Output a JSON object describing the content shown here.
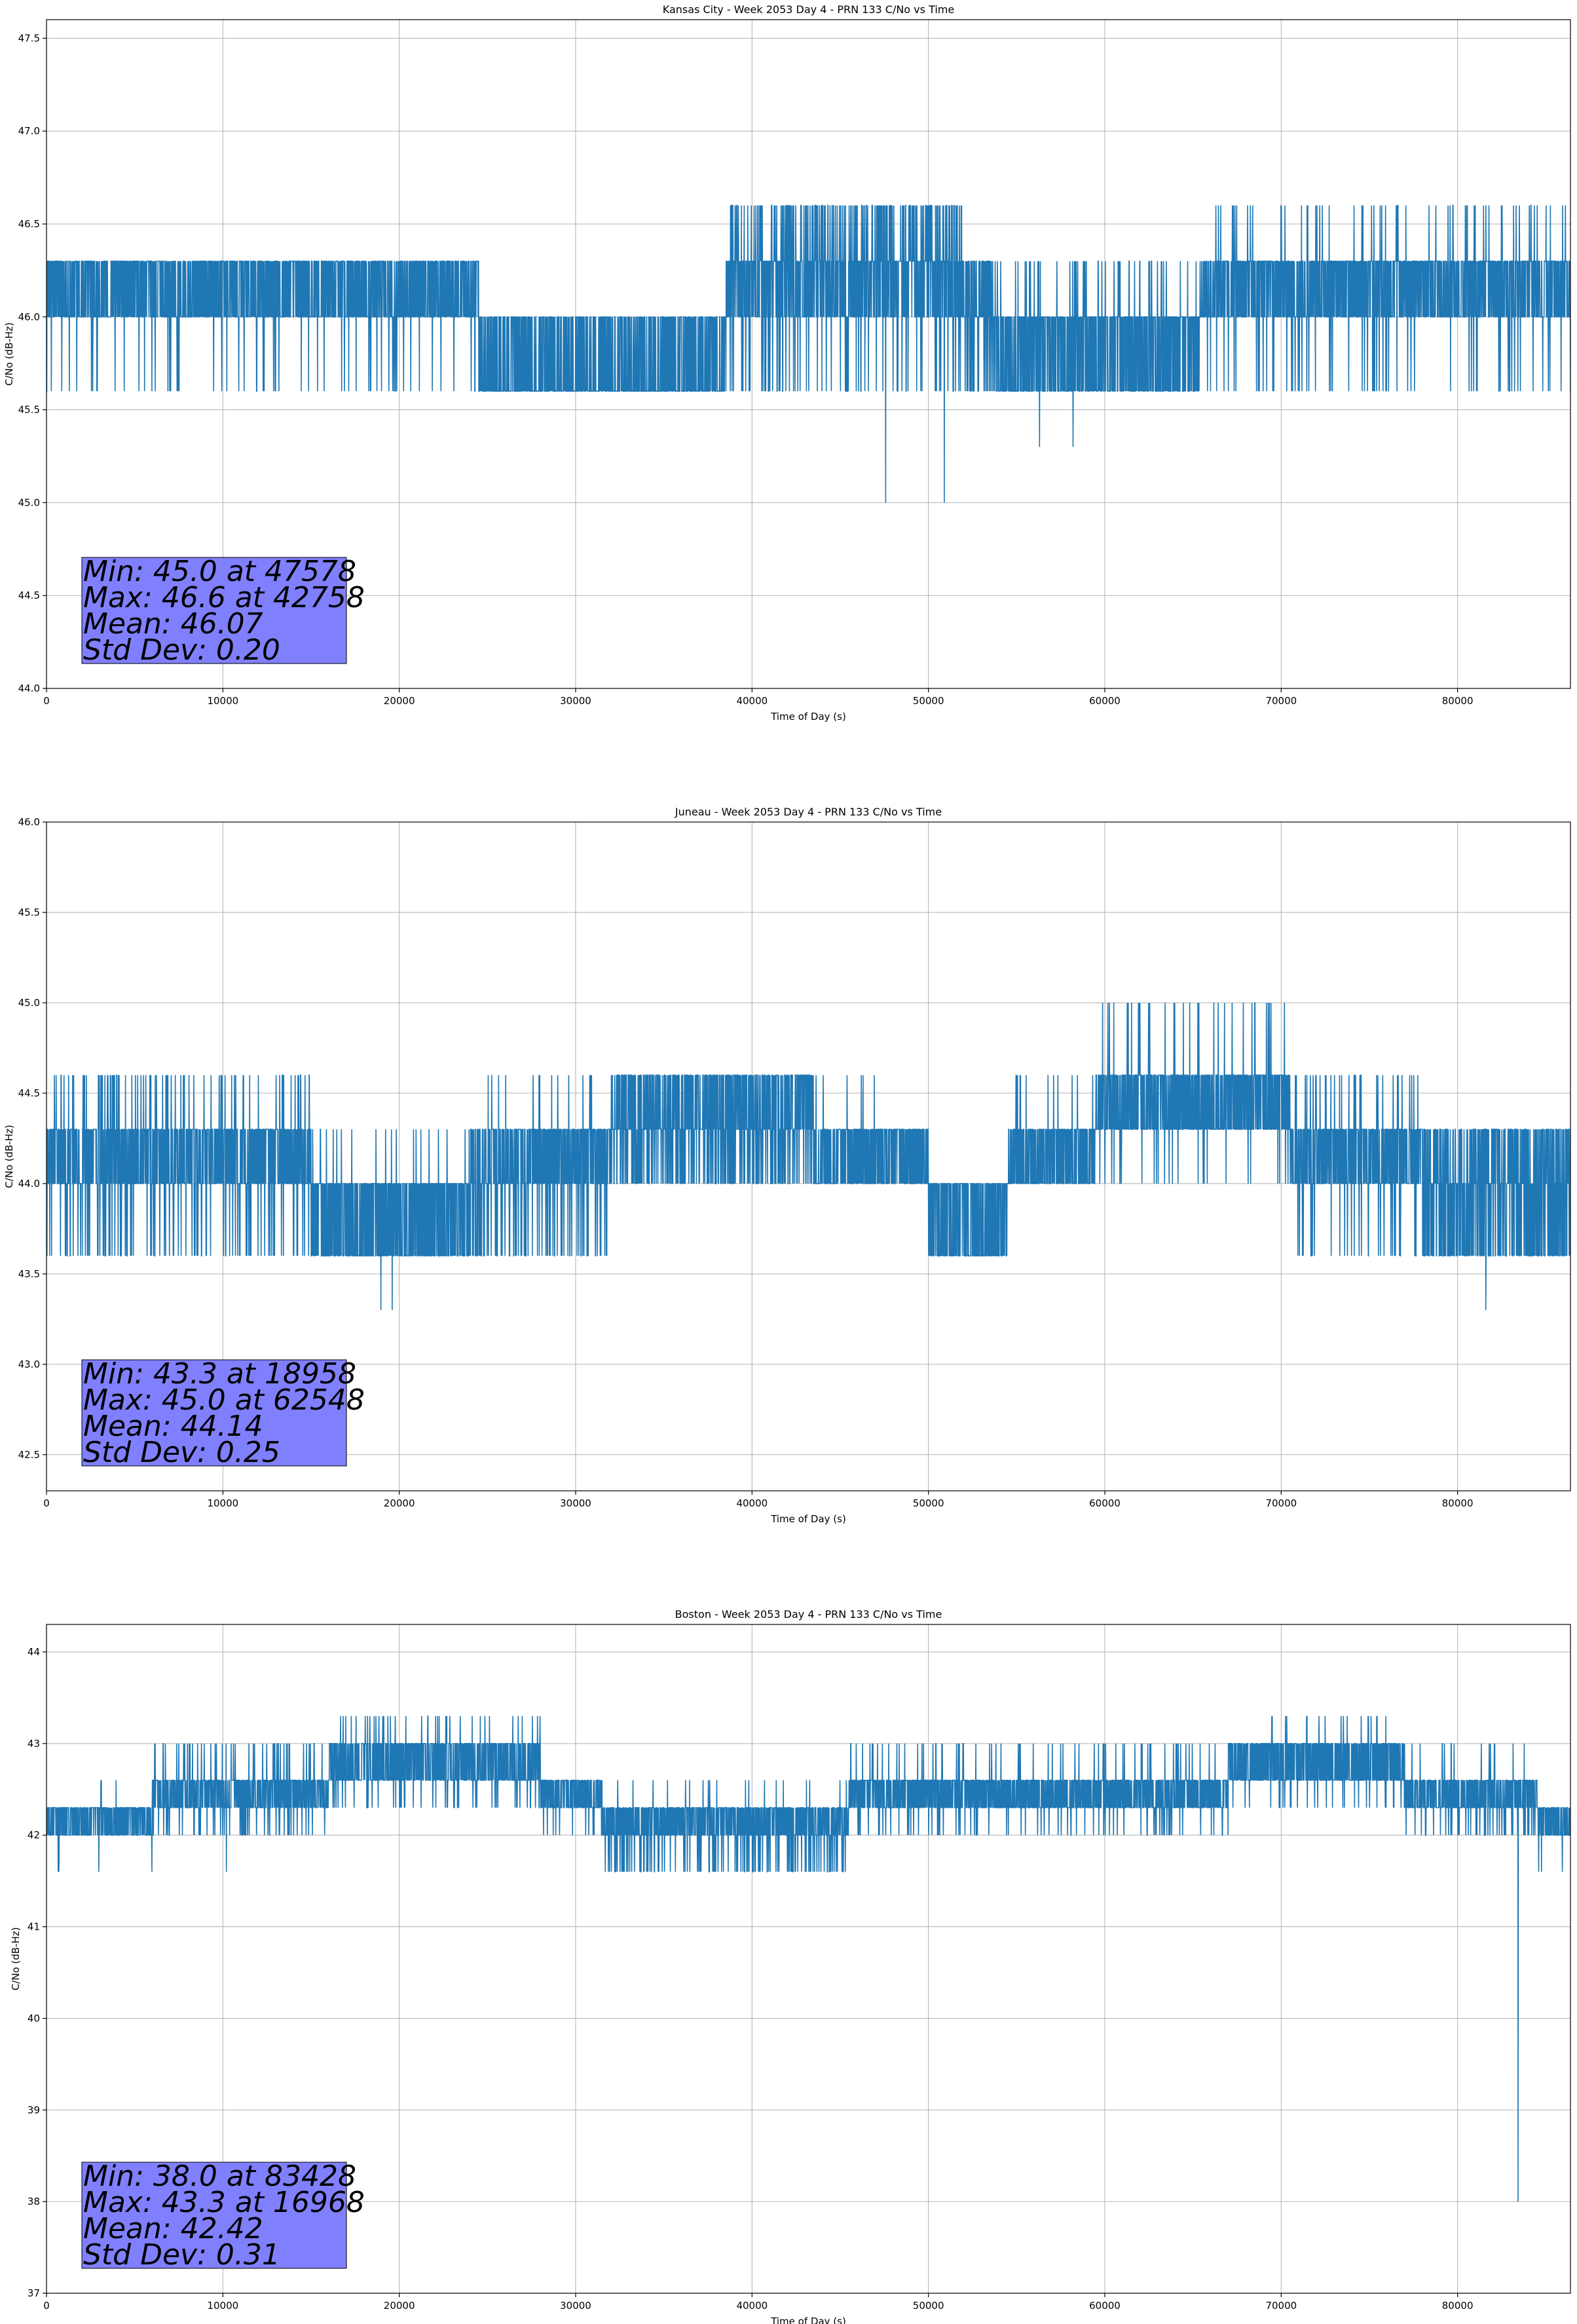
{
  "figure": {
    "line_color": "#1f77b4",
    "stats_box_color": "#8080ff"
  },
  "chart_data": [
    {
      "type": "line",
      "title": "Kansas City - Week 2053 Day 4 - PRN 133 C/No vs Time",
      "xlabel": "Time of Day (s)",
      "ylabel": "C/No (dB-Hz)",
      "xlim": [
        0,
        86400
      ],
      "ylim": [
        44.0,
        47.6
      ],
      "xticks": [
        0,
        10000,
        20000,
        30000,
        40000,
        50000,
        60000,
        70000,
        80000
      ],
      "yticks": [
        "44.0",
        "44.5",
        "45.0",
        "45.5",
        "46.0",
        "46.5",
        "47.0",
        "47.5"
      ],
      "grid": true,
      "series": [
        {
          "name": "C/No",
          "quantization_step": 0.33,
          "segments": [
            {
              "x_start": 0,
              "x_end": 24500,
              "base": 46.0,
              "alt": 46.3,
              "low": 45.6,
              "high": null,
              "low_rate": 0.03,
              "high_rate": 0
            },
            {
              "x_start": 24500,
              "x_end": 38500,
              "base": 46.0,
              "alt": 45.6,
              "low": 45.6,
              "high": null,
              "low_rate": 0.25,
              "high_rate": 0
            },
            {
              "x_start": 38500,
              "x_end": 52000,
              "base": 46.0,
              "alt": 46.3,
              "low": 45.6,
              "high": 46.6,
              "low_rate": 0.08,
              "high_rate": 0.18
            },
            {
              "x_start": 52000,
              "x_end": 53600,
              "base": 46.0,
              "alt": 46.3,
              "low": 45.6,
              "high": null,
              "low_rate": 0.15,
              "high_rate": 0
            },
            {
              "x_start": 53600,
              "x_end": 65500,
              "base": 45.6,
              "alt": 46.0,
              "low": null,
              "high": 46.3,
              "low_rate": 0,
              "high_rate": 0.06
            },
            {
              "x_start": 65500,
              "x_end": 86400,
              "base": 46.0,
              "alt": 46.3,
              "low": 45.6,
              "high": 46.6,
              "low_rate": 0.05,
              "high_rate": 0.04
            }
          ],
          "spikes": [
            {
              "x": 47578,
              "y": 45.0
            },
            {
              "x": 50900,
              "y": 45.0
            },
            {
              "x": 56300,
              "y": 45.3
            },
            {
              "x": 58200,
              "y": 45.3
            },
            {
              "x": 42758,
              "y": 46.6
            }
          ]
        }
      ],
      "stats": {
        "min": "Min: 45.0 at 47578",
        "max": "Max: 46.6 at 42758",
        "mean": "Mean: 46.07",
        "std": "Std Dev: 0.20"
      }
    },
    {
      "type": "line",
      "title": "Juneau - Week 2053 Day 4 - PRN 133 C/No vs Time",
      "xlabel": "Time of Day (s)",
      "ylabel": "C/No (dB-Hz)",
      "xlim": [
        0,
        86400
      ],
      "ylim": [
        42.3,
        46.0
      ],
      "xticks": [
        0,
        10000,
        20000,
        30000,
        40000,
        50000,
        60000,
        70000,
        80000
      ],
      "yticks": [
        "42.5",
        "43.0",
        "43.5",
        "44.0",
        "44.5",
        "45.0",
        "45.5",
        "46.0"
      ],
      "grid": true,
      "series": [
        {
          "name": "C/No",
          "quantization_step": 0.33,
          "segments": [
            {
              "x_start": 0,
              "x_end": 15000,
              "base": 44.0,
              "alt": 44.3,
              "low": 43.6,
              "high": 44.6,
              "low_rate": 0.1,
              "high_rate": 0.1
            },
            {
              "x_start": 15000,
              "x_end": 24000,
              "base": 43.6,
              "alt": 44.0,
              "low": null,
              "high": 44.3,
              "low_rate": 0,
              "high_rate": 0.04
            },
            {
              "x_start": 24000,
              "x_end": 32000,
              "base": 44.0,
              "alt": 44.3,
              "low": 43.6,
              "high": 44.6,
              "low_rate": 0.12,
              "high_rate": 0.03
            },
            {
              "x_start": 32000,
              "x_end": 43500,
              "base": 44.3,
              "alt": 44.6,
              "low": 44.0,
              "high": null,
              "low_rate": 0.2,
              "high_rate": 0
            },
            {
              "x_start": 43500,
              "x_end": 50000,
              "base": 44.0,
              "alt": 44.3,
              "low": null,
              "high": 44.6,
              "low_rate": 0,
              "high_rate": 0.03
            },
            {
              "x_start": 50000,
              "x_end": 54500,
              "base": 43.6,
              "alt": 44.0,
              "low": null,
              "high": null,
              "low_rate": 0,
              "high_rate": 0
            },
            {
              "x_start": 54500,
              "x_end": 59500,
              "base": 44.0,
              "alt": 44.3,
              "low": null,
              "high": 44.6,
              "low_rate": 0,
              "high_rate": 0.03
            },
            {
              "x_start": 59500,
              "x_end": 70500,
              "base": 44.3,
              "alt": 44.6,
              "low": 44.0,
              "high": 45.0,
              "low_rate": 0.03,
              "high_rate": 0.04
            },
            {
              "x_start": 70500,
              "x_end": 78000,
              "base": 44.0,
              "alt": 44.3,
              "low": 43.6,
              "high": 44.6,
              "low_rate": 0.05,
              "high_rate": 0.06
            },
            {
              "x_start": 78000,
              "x_end": 86400,
              "base": 44.0,
              "alt": 44.3,
              "low": 43.6,
              "high": null,
              "low_rate": 0.3,
              "high_rate": 0
            }
          ],
          "spikes": [
            {
              "x": 18958,
              "y": 43.3
            },
            {
              "x": 19600,
              "y": 43.3
            },
            {
              "x": 81600,
              "y": 43.3
            },
            {
              "x": 62548,
              "y": 45.0
            }
          ]
        }
      ],
      "stats": {
        "min": "Min: 43.3 at 18958",
        "max": "Max: 45.0 at 62548",
        "mean": "Mean: 44.14",
        "std": "Std Dev: 0.25"
      }
    },
    {
      "type": "line",
      "title": "Boston - Week 2053 Day 4 - PRN 133 C/No vs Time",
      "xlabel": "Time of Day (s)",
      "ylabel": "C/No (dB-Hz)",
      "xlim": [
        0,
        86400
      ],
      "ylim": [
        37.0,
        44.3
      ],
      "xticks": [
        0,
        10000,
        20000,
        30000,
        40000,
        50000,
        60000,
        70000,
        80000
      ],
      "yticks": [
        "37",
        "38",
        "39",
        "40",
        "41",
        "42",
        "43",
        "44"
      ],
      "grid": true,
      "series": [
        {
          "name": "C/No",
          "quantization_step": 0.33,
          "segments": [
            {
              "x_start": 0,
              "x_end": 6000,
              "base": 42.0,
              "alt": 42.3,
              "low": 41.6,
              "high": 42.6,
              "low_rate": 0.01,
              "high_rate": 0.01
            },
            {
              "x_start": 6000,
              "x_end": 16000,
              "base": 42.3,
              "alt": 42.6,
              "low": 42.0,
              "high": 43.0,
              "low_rate": 0.08,
              "high_rate": 0.06
            },
            {
              "x_start": 16000,
              "x_end": 28000,
              "base": 42.6,
              "alt": 43.0,
              "low": 42.3,
              "high": 43.3,
              "low_rate": 0.06,
              "high_rate": 0.03
            },
            {
              "x_start": 28000,
              "x_end": 31500,
              "base": 42.3,
              "alt": 42.6,
              "low": 42.0,
              "high": null,
              "low_rate": 0.04,
              "high_rate": 0
            },
            {
              "x_start": 31500,
              "x_end": 45500,
              "base": 42.0,
              "alt": 42.3,
              "low": 41.6,
              "high": 42.6,
              "low_rate": 0.12,
              "high_rate": 0.02
            },
            {
              "x_start": 45500,
              "x_end": 67000,
              "base": 42.3,
              "alt": 42.6,
              "low": 42.0,
              "high": 43.0,
              "low_rate": 0.06,
              "high_rate": 0.04
            },
            {
              "x_start": 67000,
              "x_end": 77000,
              "base": 42.6,
              "alt": 43.0,
              "low": 42.3,
              "high": 43.3,
              "low_rate": 0.05,
              "high_rate": 0.03
            },
            {
              "x_start": 77000,
              "x_end": 84500,
              "base": 42.3,
              "alt": 42.6,
              "low": 42.0,
              "high": 43.0,
              "low_rate": 0.1,
              "high_rate": 0.02
            },
            {
              "x_start": 84500,
              "x_end": 86400,
              "base": 42.0,
              "alt": 42.3,
              "low": 41.6,
              "high": null,
              "low_rate": 0.02,
              "high_rate": 0
            }
          ],
          "spikes": [
            {
              "x": 83428,
              "y": 38.0
            },
            {
              "x": 16968,
              "y": 43.3
            },
            {
              "x": 10200,
              "y": 41.6
            }
          ]
        }
      ],
      "stats": {
        "min": "Min: 38.0 at 83428",
        "max": "Max: 43.3 at 16968",
        "mean": "Mean: 42.42",
        "std": "Std Dev: 0.31"
      }
    }
  ]
}
